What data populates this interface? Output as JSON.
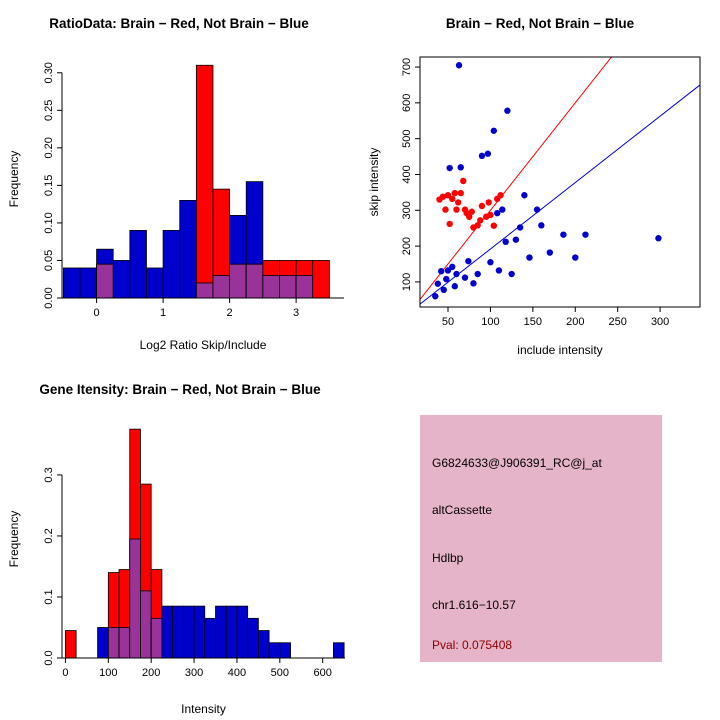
{
  "page": {
    "background": "#FFFFFF"
  },
  "chart_data": [
    {
      "type": "histogram",
      "title": "RatioData: Brain − Red, Not Brain − Blue",
      "xlabel": "Log2 Ratio Skip/Include",
      "ylabel": "Frequency",
      "xlim": [
        -0.52,
        3.72
      ],
      "ylim": [
        0,
        0.317
      ],
      "xticks": [
        0,
        1,
        2,
        3
      ],
      "xtick_labels": [
        "0",
        "1",
        "2",
        "3"
      ],
      "yticks": [
        0,
        0.05,
        0.1,
        0.15,
        0.2,
        0.25,
        0.3
      ],
      "ytick_labels": [
        "0.00",
        "0.05",
        "0.10",
        "0.15",
        "0.20",
        "0.25",
        "0.30"
      ],
      "bin_start": -0.5,
      "bin_width": 0.25,
      "overlap_color": "#993399",
      "grid": false,
      "series": [
        {
          "name": "not-brain",
          "legend": "Not Brain - Blue",
          "color": "#0000CD",
          "values": [
            0.04,
            0.04,
            0.065,
            0.05,
            0.09,
            0.04,
            0.09,
            0.13,
            0.02,
            0.03,
            0.11,
            0.155,
            0.03,
            0.03,
            0.03,
            0
          ]
        },
        {
          "name": "brain",
          "legend": "Brain - Red",
          "color": "#FF0000",
          "values": [
            0,
            0,
            0.045,
            0,
            0,
            0,
            0,
            0,
            0.31,
            0.145,
            0.045,
            0.045,
            0.05,
            0.05,
            0.05,
            0.05
          ]
        }
      ]
    },
    {
      "type": "scatter",
      "title": "Brain − Red, Not Brain − Blue",
      "xlabel": "include intensity",
      "ylabel": "skip intensity",
      "xlim": [
        17,
        347
      ],
      "ylim": [
        30,
        728
      ],
      "xticks": [
        50,
        100,
        150,
        200,
        250,
        300
      ],
      "xtick_labels": [
        "50",
        "100",
        "150",
        "200",
        "250",
        "300"
      ],
      "yticks": [
        100,
        200,
        300,
        400,
        500,
        600,
        700
      ],
      "ytick_labels": [
        "100",
        "200",
        "300",
        "400",
        "500",
        "600",
        "700"
      ],
      "grid": false,
      "series": [
        {
          "name": "not-brain",
          "legend": "Not Brain - Blue",
          "color": "#0000CD",
          "points": [
            [
              35,
              60
            ],
            [
              38,
              95
            ],
            [
              42,
              130
            ],
            [
              45,
              78
            ],
            [
              48,
              108
            ],
            [
              50,
              132
            ],
            [
              52,
              418
            ],
            [
              55,
              142
            ],
            [
              58,
              88
            ],
            [
              60,
              122
            ],
            [
              63,
              705
            ],
            [
              65,
              420
            ],
            [
              70,
              112
            ],
            [
              74,
              158
            ],
            [
              80,
              96
            ],
            [
              85,
              122
            ],
            [
              90,
              452
            ],
            [
              97,
              458
            ],
            [
              100,
              155
            ],
            [
              104,
              522
            ],
            [
              108,
              292
            ],
            [
              110,
              132
            ],
            [
              114,
              302
            ],
            [
              118,
              212
            ],
            [
              120,
              578
            ],
            [
              125,
              122
            ],
            [
              130,
              218
            ],
            [
              135,
              252
            ],
            [
              140,
              342
            ],
            [
              146,
              168
            ],
            [
              155,
              302
            ],
            [
              160,
              258
            ],
            [
              170,
              182
            ],
            [
              186,
              232
            ],
            [
              200,
              168
            ],
            [
              212,
              232
            ],
            [
              298,
              222
            ]
          ]
        },
        {
          "name": "brain",
          "legend": "Brain - Red",
          "color": "#FF0000",
          "points": [
            [
              40,
              330
            ],
            [
              44,
              338
            ],
            [
              47,
              302
            ],
            [
              50,
              342
            ],
            [
              52,
              262
            ],
            [
              55,
              332
            ],
            [
              58,
              348
            ],
            [
              60,
              302
            ],
            [
              62,
              322
            ],
            [
              65,
              348
            ],
            [
              68,
              382
            ],
            [
              70,
              302
            ],
            [
              72,
              292
            ],
            [
              75,
              282
            ],
            [
              78,
              296
            ],
            [
              80,
              252
            ],
            [
              85,
              258
            ],
            [
              88,
              272
            ],
            [
              90,
              312
            ],
            [
              95,
              282
            ],
            [
              98,
              322
            ],
            [
              100,
              287
            ],
            [
              104,
              257
            ],
            [
              108,
              332
            ],
            [
              112,
              342
            ]
          ]
        }
      ],
      "lines": [
        {
          "name": "brain-fit-line",
          "color": "#FF0000",
          "from": [
            17,
            51
          ],
          "to": [
            243,
            729
          ]
        },
        {
          "name": "not-brain-fit-line",
          "color": "#0000CD",
          "from": [
            17,
            38
          ],
          "to": [
            347,
            650
          ]
        }
      ]
    },
    {
      "type": "histogram",
      "title": "Gene Itensity: Brain − Red, Not Brain − Blue",
      "xlabel": "Intensity",
      "ylabel": "Frequency",
      "xlim": [
        -8,
        652
      ],
      "ylim": [
        0,
        0.39
      ],
      "xticks": [
        0,
        100,
        200,
        300,
        400,
        500,
        600
      ],
      "xtick_labels": [
        "0",
        "100",
        "200",
        "300",
        "400",
        "500",
        "600"
      ],
      "yticks": [
        0,
        0.1,
        0.2,
        0.3
      ],
      "ytick_labels": [
        "0.0",
        "0.1",
        "0.2",
        "0.3"
      ],
      "bin_start": 0,
      "bin_width": 25,
      "overlap_color": "#993399",
      "grid": false,
      "series": [
        {
          "name": "not-brain",
          "legend": "Not Brain - Blue",
          "color": "#0000CD",
          "values": [
            0,
            0,
            0,
            0.05,
            0.05,
            0.05,
            0.195,
            0.11,
            0.065,
            0.085,
            0.085,
            0.085,
            0.085,
            0.065,
            0.085,
            0.085,
            0.085,
            0.065,
            0.045,
            0.025,
            0.025,
            0,
            0,
            0,
            0,
            0.025
          ]
        },
        {
          "name": "brain",
          "legend": "Brain - Red",
          "color": "#FF0000",
          "values": [
            0.045,
            0,
            0,
            0,
            0.14,
            0.145,
            0.375,
            0.285,
            0.145,
            0,
            0,
            0,
            0,
            0,
            0,
            0,
            0,
            0,
            0,
            0,
            0,
            0,
            0,
            0,
            0,
            0
          ]
        }
      ]
    }
  ],
  "info_box": {
    "bg": "#E6B4C8",
    "lines": [
      {
        "text": "G6824633@J906391_RC@j_at",
        "color": "#000000"
      },
      {
        "text": "altCassette",
        "color": "#000000"
      },
      {
        "text": "Hdlbp",
        "color": "#000000"
      },
      {
        "text": "chr1.616−10.57",
        "color": "#000000"
      },
      {
        "text": "Pval: 0.075408",
        "color": "#8B0000"
      }
    ]
  }
}
